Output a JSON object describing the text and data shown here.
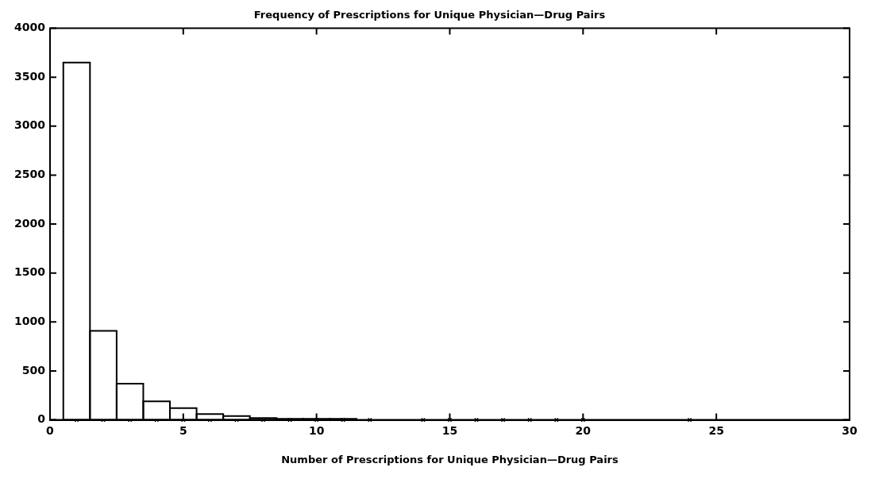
{
  "chart_data": {
    "type": "histogram",
    "title": "Frequency of Prescriptions for Unique Physician—Drug Pairs",
    "xlabel": "Number of Prescriptions for Unique Physician—Drug Pairs",
    "bins": [
      0.5,
      1.5,
      2.5,
      3.5,
      4.5,
      5.5,
      6.5,
      7.5,
      8.5,
      9.5,
      10.5,
      11.5
    ],
    "values": [
      3650,
      910,
      370,
      190,
      120,
      60,
      40,
      20,
      10,
      10,
      10
    ],
    "color": "#ffffff",
    "series": [
      {
        "type": "scatter",
        "x": [
          1,
          2,
          3,
          4,
          5,
          6,
          7,
          8,
          9,
          10,
          11,
          12,
          14,
          15,
          16,
          17,
          18,
          19,
          20,
          24
        ],
        "values": [
          0,
          0,
          0,
          0,
          0,
          0,
          0,
          0,
          0,
          0,
          0,
          0,
          0,
          0,
          0,
          0,
          0,
          0,
          0,
          0
        ],
        "color": "#000000",
        "marker": "cross"
      }
    ],
    "xlim": [
      0,
      30
    ],
    "xticks": [
      0,
      5,
      10,
      15,
      20,
      25,
      30
    ],
    "ylim": [
      0,
      4000
    ],
    "yticks": [
      0,
      500,
      1000,
      1500,
      2000,
      2500,
      3000,
      3500,
      4000
    ],
    "grid": false,
    "legend": false
  }
}
